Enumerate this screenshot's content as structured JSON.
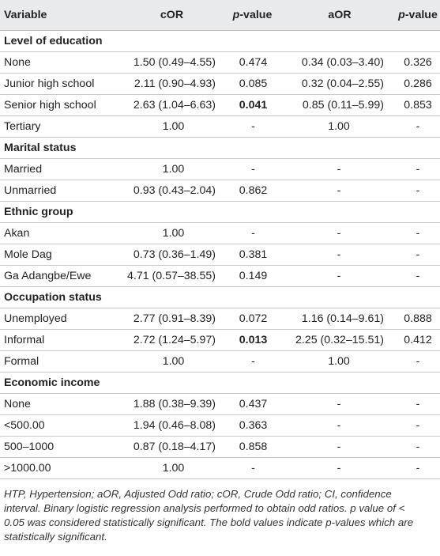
{
  "header": {
    "variable": "Variable",
    "cor": "cOR",
    "pvalue1_italic": "p",
    "pvalue1_rest": "-value",
    "aor": "aOR",
    "pvalue2_italic": "p",
    "pvalue2_rest": "-value"
  },
  "rows": [
    {
      "section": "Level of education"
    },
    {
      "v": "None",
      "cor": "1.50 (0.49–4.55)",
      "p1": "0.474",
      "aor": "0.34 (0.03–3.40)",
      "p2": "0.326"
    },
    {
      "v": "Junior high school",
      "cor": "2.11 (0.90–4.93)",
      "p1": "0.085",
      "aor": "0.32 (0.04–2.55)",
      "p2": "0.286"
    },
    {
      "v": "Senior high school",
      "cor": "2.63 (1.04–6.63)",
      "p1": "0.041",
      "p1_bold": true,
      "aor": "0.85 (0.11–5.99)",
      "p2": "0.853"
    },
    {
      "v": "Tertiary",
      "cor": "1.00",
      "cor_center": true,
      "p1": "-",
      "aor": "1.00",
      "aor_center": true,
      "p2": "-"
    },
    {
      "section": "Marital status"
    },
    {
      "v": "Married",
      "cor": "1.00",
      "cor_center": true,
      "p1": "-",
      "aor": "-",
      "aor_center": true,
      "p2": "-"
    },
    {
      "v": "Unmarried",
      "cor": "0.93 (0.43–2.04)",
      "p1": "0.862",
      "aor": "-",
      "aor_center": true,
      "p2": "-"
    },
    {
      "section": "Ethnic group"
    },
    {
      "v": "Akan",
      "cor": "1.00",
      "cor_center": true,
      "p1": "-",
      "aor": "-",
      "aor_center": true,
      "p2": "-"
    },
    {
      "v": "Mole Dag",
      "cor": "0.73 (0.36–1.49)",
      "p1": "0.381",
      "aor": "-",
      "aor_center": true,
      "p2": "-"
    },
    {
      "v": "Ga Adangbe/Ewe",
      "cor": "4.71 (0.57–38.55)",
      "p1": "0.149",
      "aor": "-",
      "aor_center": true,
      "p2": "-"
    },
    {
      "section": "Occupation status"
    },
    {
      "v": "Unemployed",
      "cor": "2.77 (0.91–8.39)",
      "p1": "0.072",
      "aor": "1.16 (0.14–9.61)",
      "p2": "0.888"
    },
    {
      "v": "Informal",
      "cor": "2.72 (1.24–5.97)",
      "p1": "0.013",
      "p1_bold": true,
      "aor": "2.25 (0.32–15.51)",
      "p2": "0.412"
    },
    {
      "v": "Formal",
      "cor": "1.00",
      "cor_center": true,
      "p1": "-",
      "aor": "1.00",
      "aor_center": true,
      "p2": "-"
    },
    {
      "section": "Economic income"
    },
    {
      "v": "None",
      "cor": "1.88 (0.38–9.39)",
      "p1": "0.437",
      "aor": "-",
      "aor_center": true,
      "p2": "-"
    },
    {
      "v": "<500.00",
      "cor": "1.94 (0.46–8.08)",
      "p1": "0.363",
      "aor": "-",
      "aor_center": true,
      "p2": "-"
    },
    {
      "v": "500–1000",
      "cor": "0.87 (0.18–4.17)",
      "p1": "0.858",
      "aor": "-",
      "aor_center": true,
      "p2": "-"
    },
    {
      "v": ">1000.00",
      "cor": "1.00",
      "cor_center": true,
      "p1": "-",
      "aor": "-",
      "aor_center": true,
      "p2": "-"
    }
  ],
  "footnote": {
    "line1": "HTP, Hypertension; aOR, Adjusted Odd ratio; cOR, Crude Odd ratio; CI, confidence",
    "line2": "interval. Binary logistic regression analysis performed to obtain odd ratios. p value of <",
    "line3": "0.05 was considered statistically significant. The bold values indicate p-values which are",
    "line4": "statistically significant."
  }
}
